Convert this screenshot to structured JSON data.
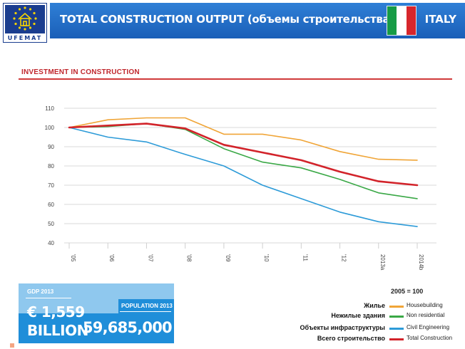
{
  "header": {
    "logo_text": "UFEMAT",
    "title": "TOTAL CONSTRUCTION OUTPUT (объемы строительства)",
    "country": "ITALY",
    "flag_colors": [
      "#169b46",
      "#ffffff",
      "#d7262c"
    ]
  },
  "chart_data": {
    "type": "line",
    "title": "INVESTMENT IN CONSTRUCTION",
    "x": [
      "'05",
      "'06",
      "'07",
      "'08",
      "'09",
      "'10",
      "'11",
      "'12",
      "2013a",
      "2014b"
    ],
    "yticks": [
      40,
      50,
      60,
      70,
      80,
      90,
      100,
      110
    ],
    "ylim": [
      40,
      110
    ],
    "grid": true,
    "base_note": "2005 = 100",
    "series": [
      {
        "name": "Housebuilding",
        "name_ru": "Жилье",
        "color": "#f0a537",
        "values": [
          100,
          104,
          105,
          105,
          96.5,
          96.5,
          93.5,
          87.5,
          83.5,
          83
        ]
      },
      {
        "name": "Non residential",
        "name_ru": "Нежилые здания",
        "color": "#3aa846",
        "values": [
          100,
          100.5,
          102,
          99,
          89,
          82,
          79,
          73,
          66,
          63
        ]
      },
      {
        "name": "Civil Engineering",
        "name_ru": "Объекты инфраструктуры",
        "color": "#2d9bd8",
        "values": [
          100,
          95,
          92.5,
          86,
          80,
          70,
          63,
          56,
          51,
          48.5
        ]
      },
      {
        "name": "Total Construction",
        "name_ru": "Всего строительство",
        "color": "#d2232a",
        "values": [
          100,
          101,
          102,
          99.5,
          91,
          87,
          83,
          77,
          72,
          70
        ]
      }
    ]
  },
  "stats": {
    "gdp_label": "GDP 2013",
    "gdp_value": "€ 1,559",
    "gdp_unit": "BILLION",
    "population_label": "POPULATION 2013",
    "population_value": "59,685,000"
  }
}
